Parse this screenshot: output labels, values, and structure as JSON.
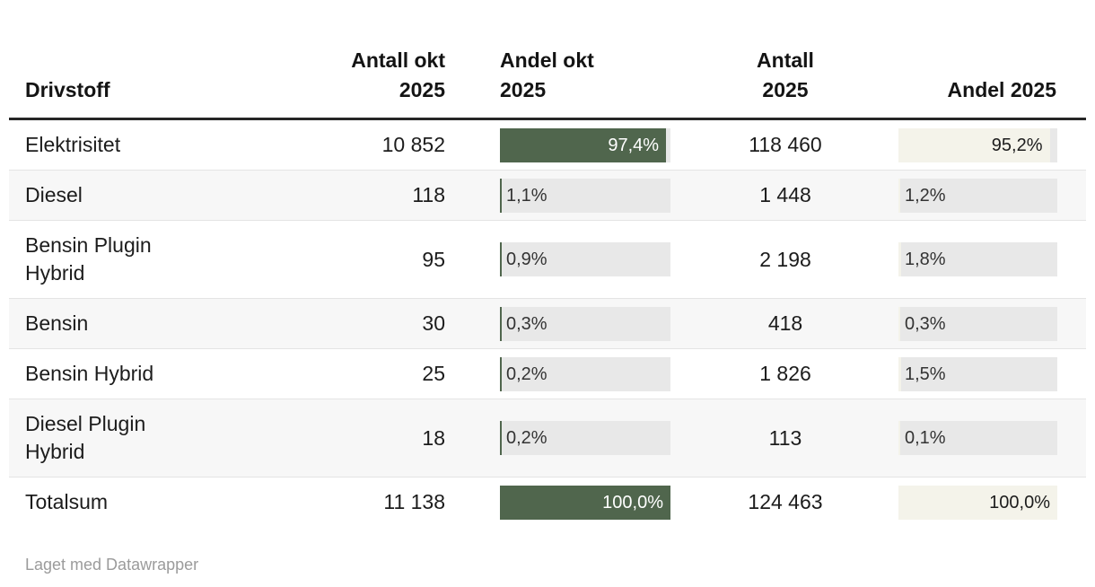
{
  "colors": {
    "bar_green": "#50664d",
    "bar_cream": "#f4f3ea",
    "bar_track": "#e8e8e8",
    "zebra_row": "#f7f7f7",
    "header_rule": "#262626",
    "row_rule": "#e4e4e4",
    "text": "#1c1c1c",
    "bar_label_on_green": "#ffffff",
    "bar_label_outside": "#333333",
    "footer_text": "#9b9b9b"
  },
  "table": {
    "columns": [
      {
        "id": "drivstoff",
        "lines": [
          "Drivstoff"
        ],
        "align": "left"
      },
      {
        "id": "antall_okt",
        "lines": [
          "Antall okt",
          "2025"
        ],
        "align": "right"
      },
      {
        "id": "andel_okt",
        "lines": [
          "Andel okt",
          "2025"
        ],
        "align": "left",
        "bar_color": "#50664d",
        "label_inside_color": "#ffffff"
      },
      {
        "id": "antall_2025",
        "lines": [
          "Antall",
          "2025"
        ],
        "align": "center"
      },
      {
        "id": "andel_2025",
        "lines": [
          "Andel 2025"
        ],
        "align": "right",
        "bar_color": "#f4f3ea",
        "label_inside_color": "#1c1c1c"
      }
    ]
  },
  "chart_data": {
    "type": "table",
    "title": "",
    "columns": [
      "Drivstoff",
      "Antall okt 2025",
      "Andel okt 2025",
      "Antall 2025",
      "Andel 2025"
    ],
    "bar_columns": [
      "Andel okt 2025",
      "Andel 2025"
    ],
    "rows": [
      {
        "drivstoff": "Elektrisitet",
        "antall_okt": 10852,
        "antall_okt_display": "10 852",
        "andel_okt_pct": 97.4,
        "andel_okt_display": "97,4%",
        "antall_2025": 118460,
        "antall_2025_display": "118 460",
        "andel_2025_pct": 95.2,
        "andel_2025_display": "95,2%"
      },
      {
        "drivstoff": "Diesel",
        "antall_okt": 118,
        "antall_okt_display": "118",
        "andel_okt_pct": 1.1,
        "andel_okt_display": "1,1%",
        "antall_2025": 1448,
        "antall_2025_display": "1 448",
        "andel_2025_pct": 1.2,
        "andel_2025_display": "1,2%"
      },
      {
        "drivstoff": "Bensin Plugin Hybrid",
        "antall_okt": 95,
        "antall_okt_display": "95",
        "andel_okt_pct": 0.9,
        "andel_okt_display": "0,9%",
        "antall_2025": 2198,
        "antall_2025_display": "2 198",
        "andel_2025_pct": 1.8,
        "andel_2025_display": "1,8%"
      },
      {
        "drivstoff": "Bensin",
        "antall_okt": 30,
        "antall_okt_display": "30",
        "andel_okt_pct": 0.3,
        "andel_okt_display": "0,3%",
        "antall_2025": 418,
        "antall_2025_display": "418",
        "andel_2025_pct": 0.3,
        "andel_2025_display": "0,3%"
      },
      {
        "drivstoff": "Bensin Hybrid",
        "antall_okt": 25,
        "antall_okt_display": "25",
        "andel_okt_pct": 0.2,
        "andel_okt_display": "0,2%",
        "antall_2025": 1826,
        "antall_2025_display": "1 826",
        "andel_2025_pct": 1.5,
        "andel_2025_display": "1,5%"
      },
      {
        "drivstoff": "Diesel Plugin Hybrid",
        "antall_okt": 18,
        "antall_okt_display": "18",
        "andel_okt_pct": 0.2,
        "andel_okt_display": "0,2%",
        "antall_2025": 113,
        "antall_2025_display": "113",
        "andel_2025_pct": 0.1,
        "andel_2025_display": "0,1%"
      },
      {
        "drivstoff": "Totalsum",
        "antall_okt": 11138,
        "antall_okt_display": "11 138",
        "andel_okt_pct": 100.0,
        "andel_okt_display": "100,0%",
        "antall_2025": 124463,
        "antall_2025_display": "124 463",
        "andel_2025_pct": 100.0,
        "andel_2025_display": "100,0%"
      }
    ]
  },
  "footer": {
    "credit": "Laget med Datawrapper"
  }
}
